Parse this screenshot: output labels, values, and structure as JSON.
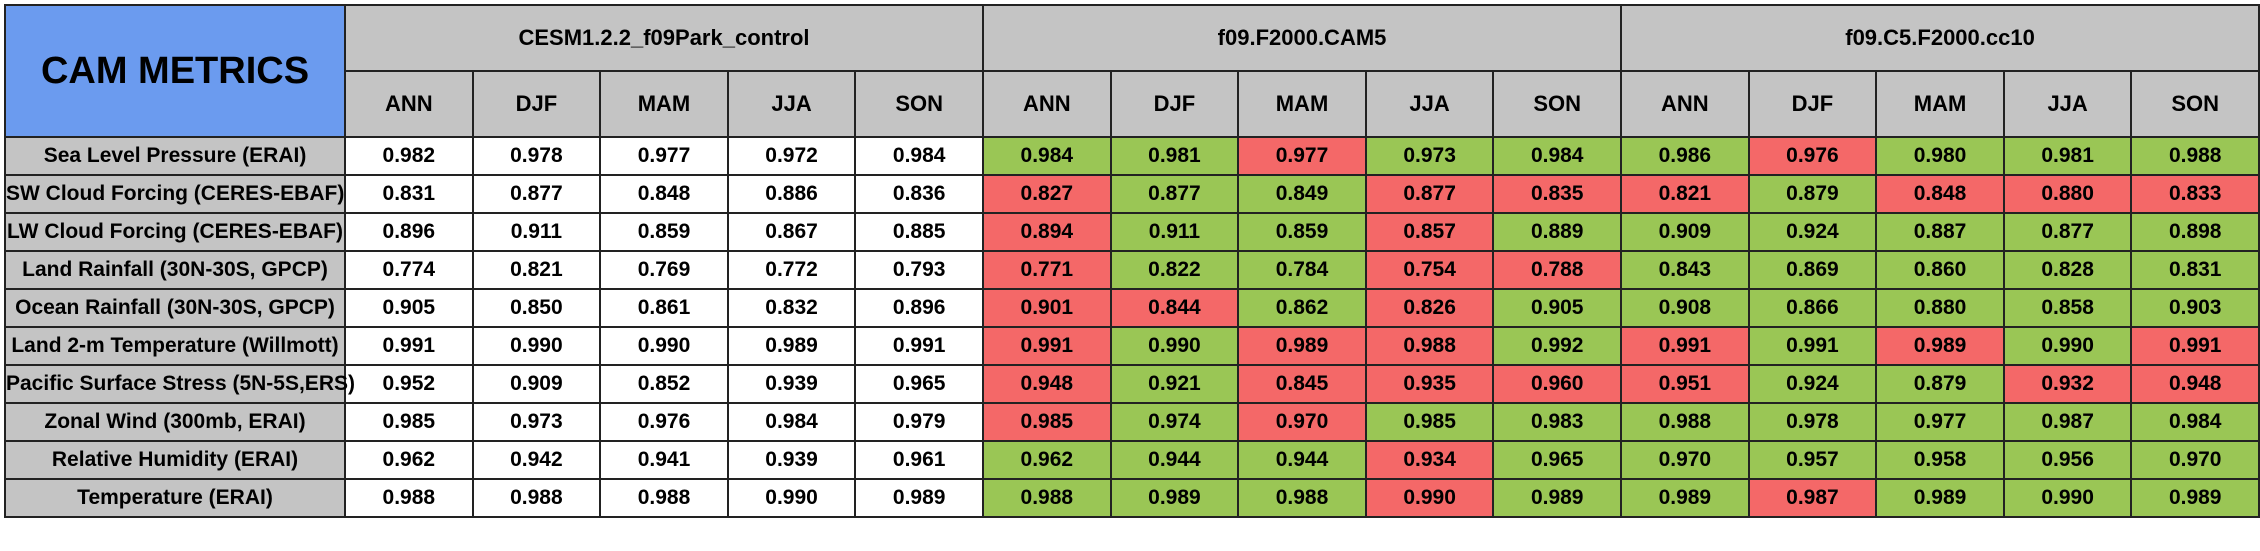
{
  "title": "CAM METRICS",
  "colors": {
    "corner": "#6b9bef",
    "header": "#c4c4c4",
    "better": "#9ac655",
    "worse": "#f46868",
    "neutral": "#ffffff"
  },
  "chart_data": {
    "type": "table",
    "title": "CAM METRICS",
    "cases": [
      "CESM1.2.2_f09Park_control",
      "f09.F2000.CAM5",
      "f09.C5.F2000.cc10"
    ],
    "seasons": [
      "ANN",
      "DJF",
      "MAM",
      "JJA",
      "SON"
    ],
    "rows": [
      {
        "label": "Sea Level Pressure (ERAI)",
        "values": [
          [
            0.982,
            0.978,
            0.977,
            0.972,
            0.984
          ],
          [
            0.984,
            0.981,
            0.977,
            0.973,
            0.984
          ],
          [
            0.986,
            0.976,
            0.98,
            0.981,
            0.988
          ]
        ],
        "status": [
          [
            "plain",
            "plain",
            "plain",
            "plain",
            "plain"
          ],
          [
            "better",
            "better",
            "worse",
            "better",
            "better"
          ],
          [
            "better",
            "worse",
            "better",
            "better",
            "better"
          ]
        ]
      },
      {
        "label": "SW Cloud Forcing (CERES-EBAF)",
        "values": [
          [
            0.831,
            0.877,
            0.848,
            0.886,
            0.836
          ],
          [
            0.827,
            0.877,
            0.849,
            0.877,
            0.835
          ],
          [
            0.821,
            0.879,
            0.848,
            0.88,
            0.833
          ]
        ],
        "status": [
          [
            "plain",
            "plain",
            "plain",
            "plain",
            "plain"
          ],
          [
            "worse",
            "better",
            "better",
            "worse",
            "worse"
          ],
          [
            "worse",
            "better",
            "worse",
            "worse",
            "worse"
          ]
        ]
      },
      {
        "label": "LW Cloud Forcing (CERES-EBAF)",
        "values": [
          [
            0.896,
            0.911,
            0.859,
            0.867,
            0.885
          ],
          [
            0.894,
            0.911,
            0.859,
            0.857,
            0.889
          ],
          [
            0.909,
            0.924,
            0.887,
            0.877,
            0.898
          ]
        ],
        "status": [
          [
            "plain",
            "plain",
            "plain",
            "plain",
            "plain"
          ],
          [
            "worse",
            "better",
            "better",
            "worse",
            "better"
          ],
          [
            "better",
            "better",
            "better",
            "better",
            "better"
          ]
        ]
      },
      {
        "label": "Land Rainfall (30N-30S, GPCP)",
        "values": [
          [
            0.774,
            0.821,
            0.769,
            0.772,
            0.793
          ],
          [
            0.771,
            0.822,
            0.784,
            0.754,
            0.788
          ],
          [
            0.843,
            0.869,
            0.86,
            0.828,
            0.831
          ]
        ],
        "status": [
          [
            "plain",
            "plain",
            "plain",
            "plain",
            "plain"
          ],
          [
            "worse",
            "better",
            "better",
            "worse",
            "worse"
          ],
          [
            "better",
            "better",
            "better",
            "better",
            "better"
          ]
        ]
      },
      {
        "label": "Ocean Rainfall (30N-30S, GPCP)",
        "values": [
          [
            0.905,
            0.85,
            0.861,
            0.832,
            0.896
          ],
          [
            0.901,
            0.844,
            0.862,
            0.826,
            0.905
          ],
          [
            0.908,
            0.866,
            0.88,
            0.858,
            0.903
          ]
        ],
        "status": [
          [
            "plain",
            "plain",
            "plain",
            "plain",
            "plain"
          ],
          [
            "worse",
            "worse",
            "better",
            "worse",
            "better"
          ],
          [
            "better",
            "better",
            "better",
            "better",
            "better"
          ]
        ]
      },
      {
        "label": "Land 2-m Temperature (Willmott)",
        "values": [
          [
            0.991,
            0.99,
            0.99,
            0.989,
            0.991
          ],
          [
            0.991,
            0.99,
            0.989,
            0.988,
            0.992
          ],
          [
            0.991,
            0.991,
            0.989,
            0.99,
            0.991
          ]
        ],
        "status": [
          [
            "plain",
            "plain",
            "plain",
            "plain",
            "plain"
          ],
          [
            "worse",
            "better",
            "worse",
            "worse",
            "better"
          ],
          [
            "worse",
            "better",
            "worse",
            "better",
            "worse"
          ]
        ]
      },
      {
        "label": "Pacific Surface Stress (5N-5S,ERS)",
        "values": [
          [
            0.952,
            0.909,
            0.852,
            0.939,
            0.965
          ],
          [
            0.948,
            0.921,
            0.845,
            0.935,
            0.96
          ],
          [
            0.951,
            0.924,
            0.879,
            0.932,
            0.948
          ]
        ],
        "status": [
          [
            "plain",
            "plain",
            "plain",
            "plain",
            "plain"
          ],
          [
            "worse",
            "better",
            "worse",
            "worse",
            "worse"
          ],
          [
            "worse",
            "better",
            "better",
            "worse",
            "worse"
          ]
        ]
      },
      {
        "label": "Zonal Wind (300mb, ERAI)",
        "values": [
          [
            0.985,
            0.973,
            0.976,
            0.984,
            0.979
          ],
          [
            0.985,
            0.974,
            0.97,
            0.985,
            0.983
          ],
          [
            0.988,
            0.978,
            0.977,
            0.987,
            0.984
          ]
        ],
        "status": [
          [
            "plain",
            "plain",
            "plain",
            "plain",
            "plain"
          ],
          [
            "worse",
            "better",
            "worse",
            "better",
            "better"
          ],
          [
            "better",
            "better",
            "better",
            "better",
            "better"
          ]
        ]
      },
      {
        "label": "Relative Humidity (ERAI)",
        "values": [
          [
            0.962,
            0.942,
            0.941,
            0.939,
            0.961
          ],
          [
            0.962,
            0.944,
            0.944,
            0.934,
            0.965
          ],
          [
            0.97,
            0.957,
            0.958,
            0.956,
            0.97
          ]
        ],
        "status": [
          [
            "plain",
            "plain",
            "plain",
            "plain",
            "plain"
          ],
          [
            "better",
            "better",
            "better",
            "worse",
            "better"
          ],
          [
            "better",
            "better",
            "better",
            "better",
            "better"
          ]
        ]
      },
      {
        "label": "Temperature (ERAI)",
        "values": [
          [
            0.988,
            0.988,
            0.988,
            0.99,
            0.989
          ],
          [
            0.988,
            0.989,
            0.988,
            0.99,
            0.989
          ],
          [
            0.989,
            0.987,
            0.989,
            0.99,
            0.989
          ]
        ],
        "status": [
          [
            "plain",
            "plain",
            "plain",
            "plain",
            "plain"
          ],
          [
            "better",
            "better",
            "better",
            "worse",
            "better"
          ],
          [
            "better",
            "worse",
            "better",
            "better",
            "better"
          ]
        ]
      }
    ]
  }
}
